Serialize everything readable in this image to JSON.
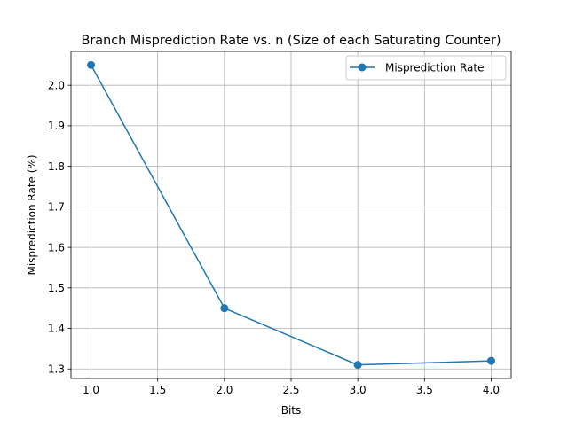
{
  "chart_data": {
    "type": "line",
    "title": "Branch Misprediction Rate vs. n (Size of each Saturating Counter)",
    "xlabel": "Bits",
    "ylabel": "Misprediction Rate (%)",
    "x": [
      1.0,
      2.0,
      3.0,
      4.0
    ],
    "series": [
      {
        "name": "Misprediction Rate",
        "values": [
          2.05,
          1.45,
          1.31,
          1.32
        ],
        "color": "#1f77b4",
        "marker": "circle"
      }
    ],
    "xlim": [
      0.85,
      4.15
    ],
    "ylim": [
      1.2765,
      2.0835
    ],
    "xticks": [
      "1.0",
      "1.5",
      "2.0",
      "2.5",
      "3.0",
      "3.5",
      "4.0"
    ],
    "yticks": [
      "1.3",
      "1.4",
      "1.5",
      "1.6",
      "1.7",
      "1.8",
      "1.9",
      "2.0"
    ],
    "grid": true,
    "legend_position": "top-right"
  }
}
